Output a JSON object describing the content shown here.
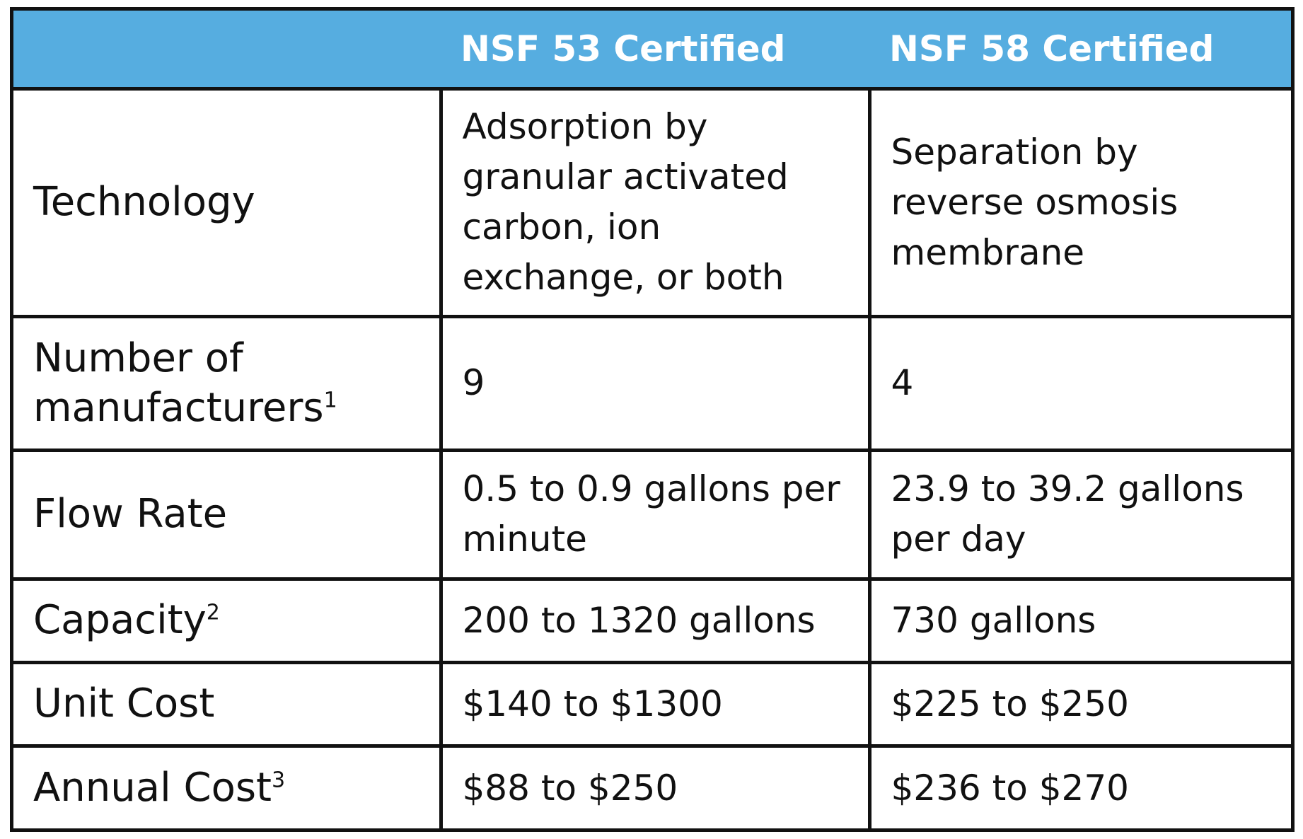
{
  "header": {
    "empty": "",
    "col1": "NSF 53 Certified",
    "col2": "NSF 58 Certified"
  },
  "rows": [
    {
      "label": "Technology",
      "sup": "",
      "col1": "Adsorption by granular activated carbon, ion exchange, or both",
      "col2": "Separation by reverse osmosis membrane"
    },
    {
      "label": "Number of manufacturers",
      "sup": "1",
      "col1": "9",
      "col2": "4"
    },
    {
      "label": "Flow Rate",
      "sup": "",
      "col1": "0.5 to 0.9 gallons per minute",
      "col2": "23.9 to 39.2 gallons per day"
    },
    {
      "label": "Capacity",
      "sup": "2",
      "col1": "200 to 1320 gallons",
      "col2": "730 gallons"
    },
    {
      "label": "Unit Cost",
      "sup": "",
      "col1": "$140 to $1300",
      "col2": "$225 to $250"
    },
    {
      "label": "Annual Cost",
      "sup": "3",
      "col1": "$88 to $250",
      "col2": "$236 to $270"
    }
  ],
  "colors": {
    "header_bg": "#56ade0",
    "header_text": "#ffffff",
    "border": "#111111",
    "text": "#111111"
  }
}
